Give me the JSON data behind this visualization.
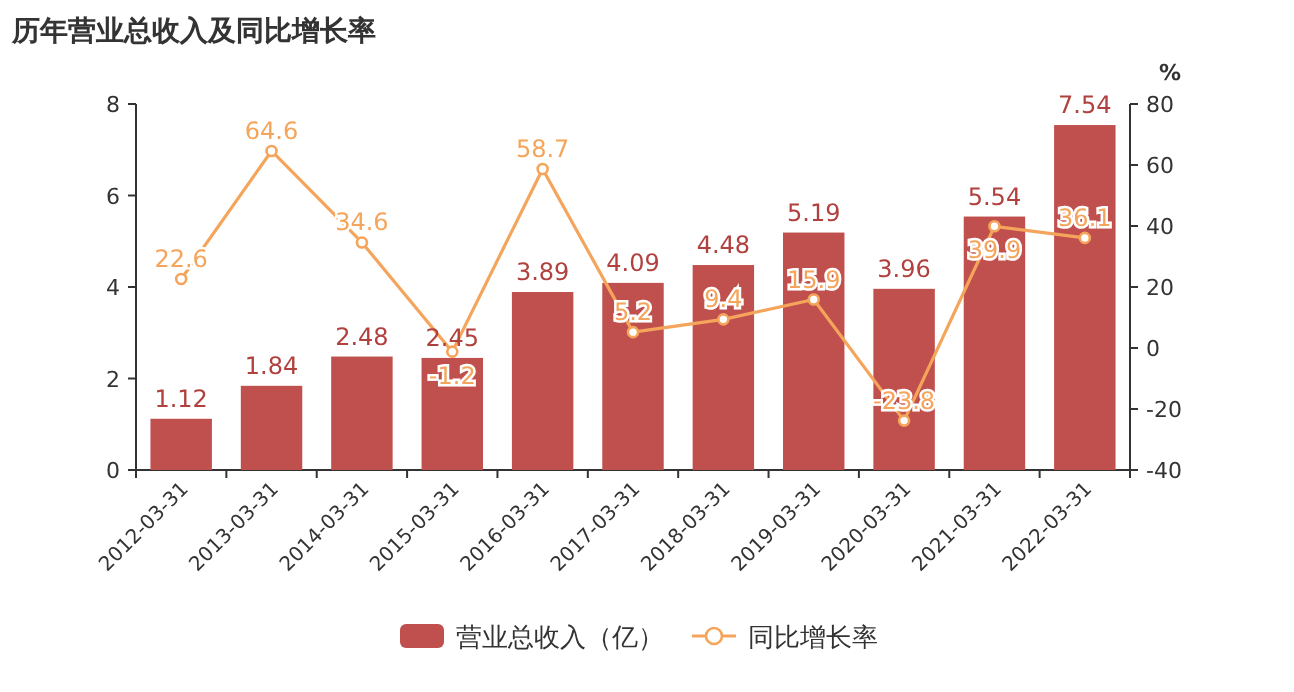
{
  "chart_data": {
    "type": "bar",
    "title": "历年营业总收入及同比增长率",
    "categories": [
      "2012-03-31",
      "2013-03-31",
      "2014-03-31",
      "2015-03-31",
      "2016-03-31",
      "2017-03-31",
      "2018-03-31",
      "2019-03-31",
      "2020-03-31",
      "2021-03-31",
      "2022-03-31"
    ],
    "series": [
      {
        "name": "营业总收入（亿）",
        "color": "#c0504d",
        "values": [
          1.12,
          1.84,
          2.48,
          2.45,
          3.89,
          4.09,
          4.48,
          5.19,
          3.96,
          5.54,
          7.54
        ]
      },
      {
        "name": "同比增长率",
        "type": "line",
        "axis": "y2",
        "color": "#f5a55b",
        "values": [
          22.6,
          64.6,
          34.6,
          -1.2,
          58.7,
          5.2,
          9.4,
          15.9,
          -23.8,
          39.9,
          36.1
        ]
      }
    ],
    "ylim": [
      0,
      8
    ],
    "yticks": [
      0,
      2,
      4,
      6,
      8
    ],
    "y2label": "%",
    "y2lim": [
      -40,
      80
    ],
    "y2ticks": [
      -40,
      -20,
      0,
      20,
      40,
      60,
      80
    ],
    "data_labels": true,
    "legend": "bottom",
    "marker": "circle"
  }
}
